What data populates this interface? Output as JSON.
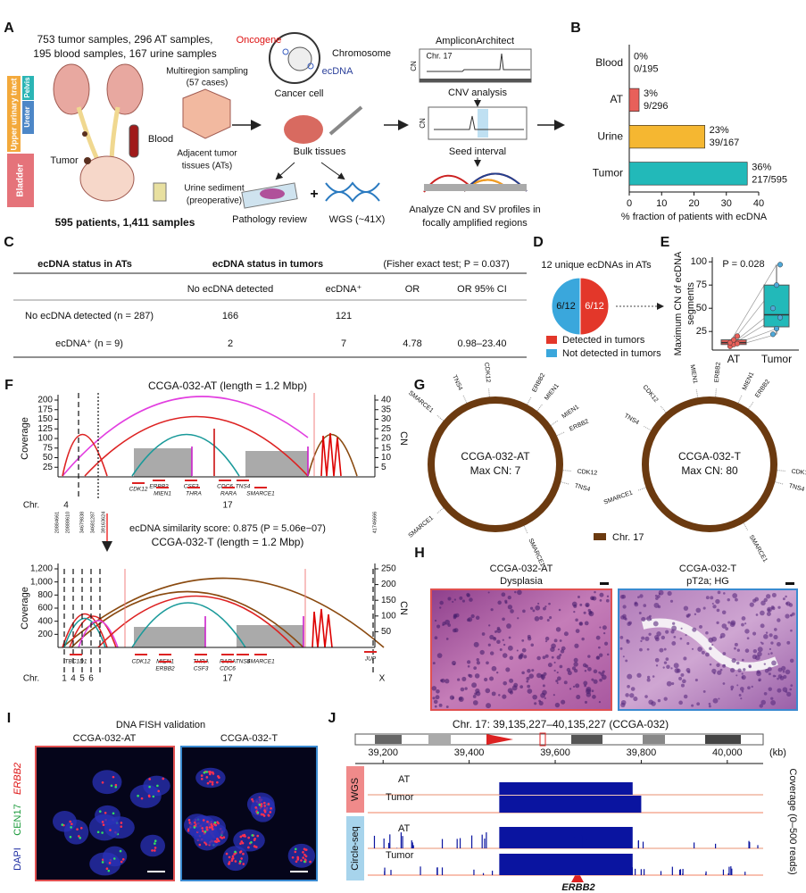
{
  "A": {
    "letter": "A",
    "samples_1": "753 tumor samples, 296 AT samples,",
    "samples_2": "195 blood samples, 167 urine samples",
    "tract": [
      "Upper urinary tract",
      "Pelvis",
      "Ureter",
      "Bladder"
    ],
    "tumor": "Tumor",
    "blood": "Blood",
    "multiregion_1": "Multiregion sampling",
    "multiregion_2": "(57 cases)",
    "adjacent_1": "Adjacent tumor",
    "adjacent_2": "tissues (ATs)",
    "urine_1": "Urine sediment",
    "urine_2": "(preoperative)",
    "patients": "595 patients, 1,411 samples",
    "oncogene": "Oncogene",
    "chromosome": "Chromosome",
    "ecdna": "ecDNA",
    "cancer_cell": "Cancer cell",
    "bulk": "Bulk tissues",
    "pathology": "Pathology review",
    "plus": "+",
    "wgs": "WGS (~41X)",
    "tool": "AmpliconArchitect",
    "chr": "Chr. 17",
    "cn": "CN",
    "cnv": "CNV analysis",
    "cn_2": "CN",
    "seed": "Seed interval",
    "analyze_1": "Analyze CN and SV profiles in",
    "analyze_2": "focally amplified regions"
  },
  "B": {
    "letter": "B",
    "chart_data": {
      "type": "bar",
      "orientation": "horizontal",
      "categories": [
        "Blood",
        "AT",
        "Urine",
        "Tumor"
      ],
      "values": [
        0,
        3.04,
        23.35,
        36.47
      ],
      "value_labels": [
        "0%",
        "3%",
        "23%",
        "36%"
      ],
      "counts": [
        "0/195",
        "9/296",
        "39/167",
        "217/595"
      ],
      "colors": [
        "#e8605a",
        "#e8605a",
        "#f5b731",
        "#22b9b9"
      ],
      "xlim": [
        0,
        40
      ],
      "xticks": [
        0,
        10,
        20,
        30,
        40
      ],
      "xlabel": "% fraction of patients with ecDNA"
    }
  },
  "C": {
    "letter": "C",
    "table": {
      "header": [
        "ecDNA status in ATs",
        "ecDNA status in tumors",
        "(Fisher exact test; P = 0.037)"
      ],
      "subheader": [
        "No ecDNA detected",
        "ecDNA⁺",
        "OR",
        "OR 95% CI"
      ],
      "rows": [
        [
          "No ecDNA detected (n = 287)",
          "166",
          "121"
        ],
        [
          "ecDNA⁺ (n = 9)",
          "2",
          "7",
          "4.78",
          "0.98–23.40"
        ]
      ]
    }
  },
  "D": {
    "letter": "D",
    "title": "12 unique ecDNAs in ATs",
    "chart_data": {
      "type": "pie",
      "categories": [
        "Detected in tumors",
        "Not detected in tumors"
      ],
      "values": [
        6,
        6
      ],
      "value_labels": [
        "6/12",
        "6/12"
      ],
      "colors": [
        "#e3372a",
        "#3aa7dc"
      ]
    }
  },
  "E": {
    "letter": "E",
    "chart_data": {
      "type": "box",
      "ylabel": [
        "Maximum CN of ecDNA",
        "segments"
      ],
      "annotation": "P = 0.028",
      "categories": [
        "AT",
        "Tumor"
      ],
      "colors": [
        "#e8605a",
        "#22b9b9"
      ],
      "boxes": [
        {
          "whislo": 9,
          "q1": 11,
          "med": 13,
          "q3": 16,
          "whishi": 20
        },
        {
          "whislo": 22,
          "q1": 30,
          "med": 43,
          "q3": 75,
          "whishi": 97
        }
      ],
      "points": [
        [
          9,
          11,
          12,
          13,
          16,
          20
        ],
        [
          22,
          28,
          40,
          50,
          75,
          97
        ]
      ],
      "ylim": [
        5,
        105
      ],
      "yticks": [
        25,
        50,
        75,
        100
      ]
    }
  },
  "F": {
    "letter": "F",
    "top": {
      "title": "CCGA-032-AT (length = 1.2 Mbp)",
      "ylabel": "Coverage",
      "y2label": "CN",
      "ylim": [
        0,
        200
      ],
      "yticks": [
        25,
        50,
        75,
        100,
        125,
        150,
        175,
        200
      ],
      "y2lim": [
        0,
        40
      ],
      "y2ticks": [
        5,
        10,
        15,
        20,
        25,
        30,
        35,
        40
      ],
      "genes": [
        "CDK12",
        "ERBB2",
        "MIEN1",
        "CSF3",
        "THRA",
        "CDC6",
        "RARA",
        "TNS4",
        "SMARCE1"
      ],
      "chr_label": "Chr.",
      "chromosomes": [
        "4",
        "17"
      ],
      "coords": [
        "20884661",
        "20888610",
        "34679838",
        "34681287",
        "39163624",
        "41746666"
      ]
    },
    "similarity": "ecDNA similarity score: 0.875 (P = 5.06e−07)",
    "bottom": {
      "title": "CCGA-032-T (length = 1.2 Mbp)",
      "ylabel": "Coverage",
      "y2label": "CN",
      "ylim": [
        0,
        1200
      ],
      "yticks": [
        200,
        400,
        600,
        800,
        {
          "value": 1000,
          "label": "1,000"
        },
        {
          "value": 1200,
          "label": "1,200"
        }
      ],
      "y2lim": [
        0,
        250
      ],
      "y2ticks": [
        50,
        100,
        150,
        200,
        250
      ],
      "genes": [
        "TBC1D1",
        "CDK12",
        "MIEN1",
        "ERBB2",
        "THRA",
        "CSF3",
        "RARA",
        "CDC6",
        "TNS4",
        "SMARCE1",
        "JUP"
      ],
      "chr_label": "Chr.",
      "chromosomes": [
        "1",
        "4",
        "5",
        "6",
        "17",
        "X"
      ]
    }
  },
  "G": {
    "letter": "G",
    "legend": "Chr. 17",
    "circles": [
      {
        "name": "CCGA-032-AT",
        "max": "Max CN: 7",
        "genes": [
          "TNS4",
          "CDK12",
          "SMARCE1",
          "ERBB2",
          "MIEN1",
          "MIEN1",
          "ERBB2",
          "CDK12",
          "TNS4",
          "SMARCE1",
          "SMARCE1"
        ]
      },
      {
        "name": "CCGA-032-T",
        "max": "Max CN: 80",
        "genes": [
          "MIEN1",
          "ERBB2",
          "MIEN1",
          "ERBB2",
          "CDK12",
          "TNS4",
          "CDK12",
          "TNS4",
          "SMARCE1",
          "SMARCE1"
        ]
      }
    ]
  },
  "H": {
    "letter": "H",
    "panels": [
      [
        "CCGA-032-AT",
        "Dysplasia"
      ],
      [
        "CCGA-032-T",
        "pT2a; HG"
      ]
    ]
  },
  "I": {
    "letter": "I",
    "title": "DNA FISH validation",
    "panels": [
      "CCGA-032-AT",
      "CCGA-032-T"
    ],
    "channels": [
      "DAPI",
      "CEN17",
      "ERBB2"
    ]
  },
  "J": {
    "letter": "J",
    "title": "Chr. 17: 39,135,227–40,135,227 (CCGA-032)",
    "xlim": [
      39135.227,
      40135.227
    ],
    "xticks": [
      {
        "value": 39200,
        "label": "39,200"
      },
      {
        "value": 39400,
        "label": "39,400"
      },
      {
        "value": 39600,
        "label": "39,600"
      },
      {
        "value": 39800,
        "label": "39,800"
      },
      {
        "value": 40000,
        "label": "40,000"
      }
    ],
    "unit": "(kb)",
    "groups": [
      "WGS",
      "Circle-seq"
    ],
    "tracks": [
      "AT",
      "Tumor",
      "AT",
      "Tumor"
    ],
    "ylabel": "Coverage (0–500 reads)",
    "gene": "ERBB2"
  }
}
